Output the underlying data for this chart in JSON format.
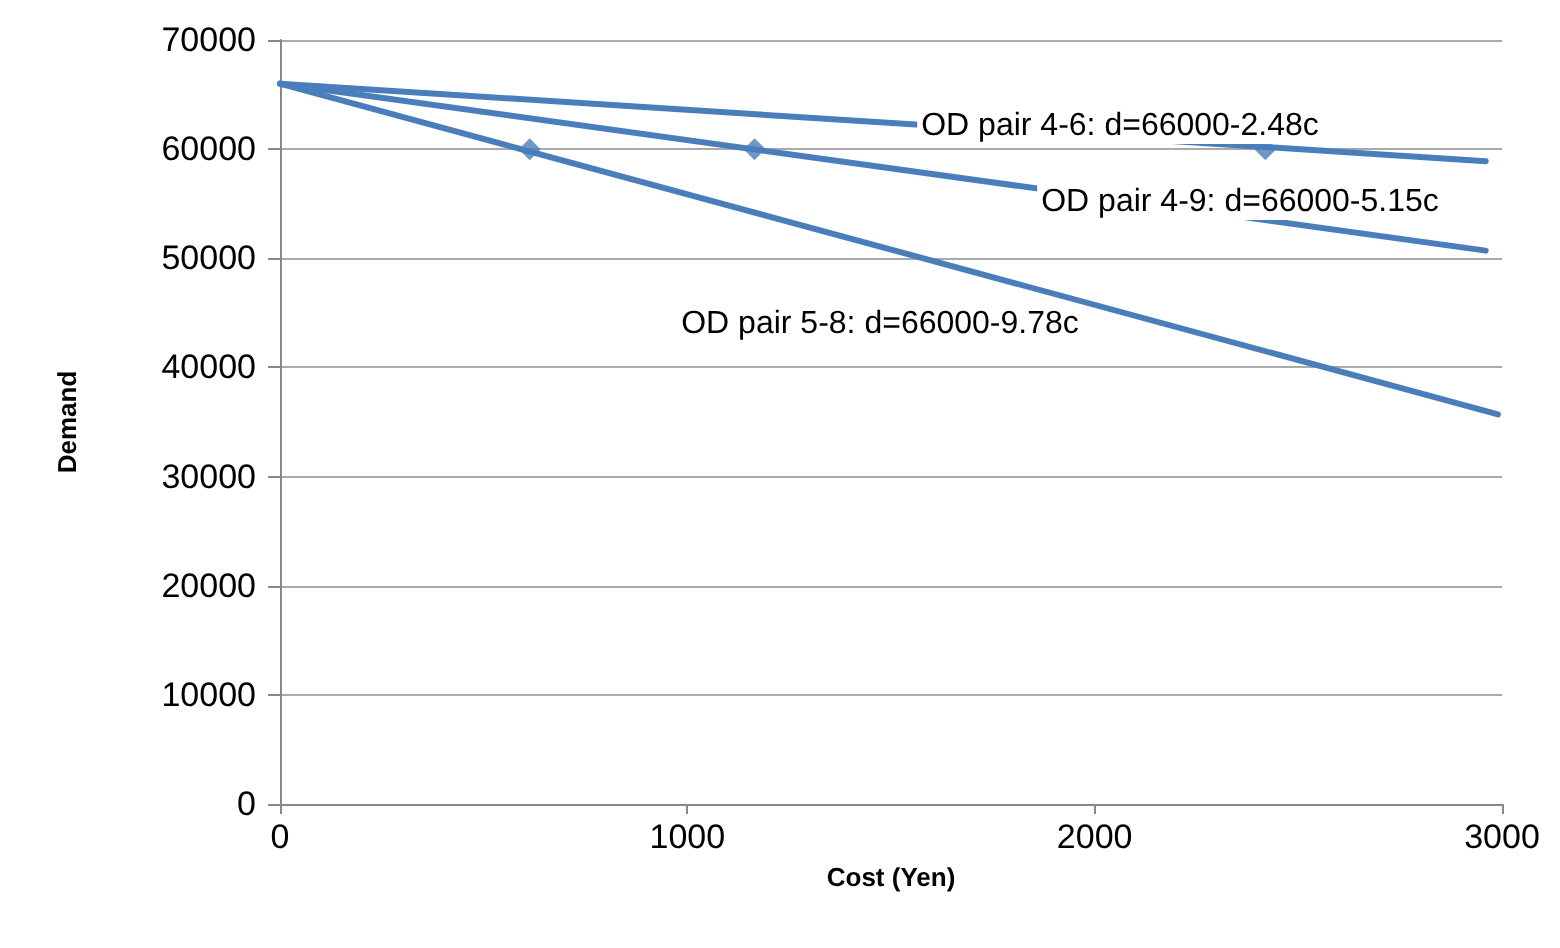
{
  "chart_data": {
    "type": "line",
    "xlabel": "Cost (Yen)",
    "ylabel": "Demand",
    "xlim": [
      0,
      3000
    ],
    "xticks": [
      0,
      1000,
      2000,
      3000
    ],
    "ylim": [
      0,
      70000
    ],
    "yticks": [
      0,
      10000,
      20000,
      30000,
      40000,
      50000,
      60000,
      70000
    ],
    "grid": "y",
    "marker": "none",
    "line_style": "solid",
    "series": [
      {
        "color": "#4a7ebb",
        "x": [
          0,
          2960
        ],
        "values": [
          66000,
          58900
        ]
      },
      {
        "color": "#4a7ebb",
        "x": [
          0,
          2960
        ],
        "values": [
          66000,
          50700
        ]
      },
      {
        "color": "#4a7ebb",
        "x": [
          0,
          2990
        ],
        "values": [
          66000,
          35700
        ]
      },
      {
        "type": "scatter",
        "marker": "diamond",
        "color": "#4a7ebb",
        "x": [
          613,
          1165,
          2419
        ],
        "values": [
          60000,
          60000,
          60000
        ]
      }
    ],
    "annotations": [
      "OD pair 4-6: d=66000-2.48c",
      "OD pair 4-9: d=66000-5.15c",
      "OD pair 5-8: d=66000-9.78c"
    ]
  }
}
